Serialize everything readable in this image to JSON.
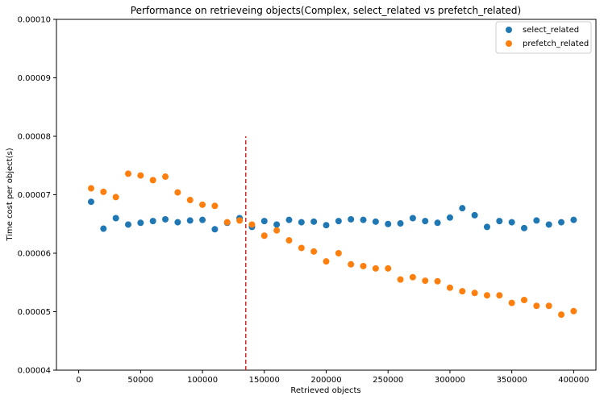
{
  "chart_data": {
    "type": "scatter",
    "title": "Performance on retrieveing objects(Complex, select_related vs prefetch_related)",
    "xlabel": "Retrieved objects",
    "ylabel": "Time cost per object(s)",
    "xlim": [
      -18000,
      418000
    ],
    "ylim": [
      4e-05,
      0.0001
    ],
    "xticks": [
      0,
      50000,
      100000,
      150000,
      200000,
      250000,
      300000,
      350000,
      400000
    ],
    "xtick_labels": [
      "0",
      "50000",
      "100000",
      "150000",
      "200000",
      "250000",
      "300000",
      "350000",
      "400000"
    ],
    "yticks": [
      4e-05,
      5e-05,
      6e-05,
      7e-05,
      8e-05,
      9e-05,
      0.0001
    ],
    "ytick_labels": [
      "0.00004",
      "0.00005",
      "0.00006",
      "0.00007",
      "0.00008",
      "0.00009",
      "0.00010"
    ],
    "grid": false,
    "legend": "top-right",
    "x": [
      10000,
      20000,
      30000,
      40000,
      50000,
      60000,
      70000,
      80000,
      90000,
      100000,
      110000,
      120000,
      130000,
      140000,
      150000,
      160000,
      170000,
      180000,
      190000,
      200000,
      210000,
      220000,
      230000,
      240000,
      250000,
      260000,
      270000,
      280000,
      290000,
      300000,
      310000,
      320000,
      330000,
      340000,
      350000,
      360000,
      370000,
      380000,
      390000,
      400000
    ],
    "series": [
      {
        "name": "select_related",
        "color": "#1f77b4",
        "values": [
          6.88e-05,
          6.42e-05,
          6.6e-05,
          6.49e-05,
          6.52e-05,
          6.55e-05,
          6.58e-05,
          6.53e-05,
          6.56e-05,
          6.57e-05,
          6.41e-05,
          6.52e-05,
          6.6e-05,
          6.45e-05,
          6.55e-05,
          6.49e-05,
          6.57e-05,
          6.53e-05,
          6.54e-05,
          6.48e-05,
          6.55e-05,
          6.58e-05,
          6.57e-05,
          6.54e-05,
          6.5e-05,
          6.51e-05,
          6.6e-05,
          6.55e-05,
          6.52e-05,
          6.61e-05,
          6.77e-05,
          6.65e-05,
          6.45e-05,
          6.55e-05,
          6.53e-05,
          6.43e-05,
          6.56e-05,
          6.49e-05,
          6.53e-05,
          6.57e-05
        ]
      },
      {
        "name": "prefetch_related",
        "color": "#ff7f0e",
        "values": [
          7.11e-05,
          7.05e-05,
          6.96e-05,
          7.36e-05,
          7.33e-05,
          7.25e-05,
          7.31e-05,
          7.04e-05,
          6.91e-05,
          6.83e-05,
          6.81e-05,
          6.53e-05,
          6.56e-05,
          6.49e-05,
          6.3e-05,
          6.39e-05,
          6.22e-05,
          6.09e-05,
          6.03e-05,
          5.86e-05,
          6e-05,
          5.81e-05,
          5.78e-05,
          5.74e-05,
          5.74e-05,
          5.55e-05,
          5.59e-05,
          5.53e-05,
          5.52e-05,
          5.41e-05,
          5.35e-05,
          5.32e-05,
          5.28e-05,
          5.28e-05,
          5.15e-05,
          5.2e-05,
          5.1e-05,
          5.1e-05,
          4.95e-05,
          5.01e-05
        ]
      }
    ],
    "annotations": [
      {
        "type": "vline",
        "x": 135000,
        "y_range": [
          4e-05,
          8e-05
        ],
        "color": "#d62728",
        "style": "dashed"
      }
    ]
  }
}
